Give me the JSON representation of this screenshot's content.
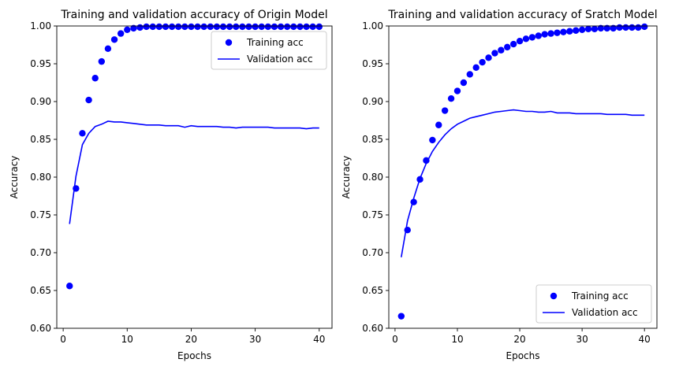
{
  "chart_data": [
    {
      "type": "line",
      "title": "Training and validation accuracy of Origin Model",
      "xlabel": "Epochs",
      "ylabel": "Accuracy",
      "xlim": [
        -1,
        42
      ],
      "ylim": [
        0.6,
        1.0
      ],
      "xticks": [
        0,
        10,
        20,
        30,
        40
      ],
      "yticks": [
        0.6,
        0.65,
        0.7,
        0.75,
        0.8,
        0.85,
        0.9,
        0.95,
        1.0
      ],
      "ytick_labels": [
        "0.60",
        "0.65",
        "0.70",
        "0.75",
        "0.80",
        "0.85",
        "0.90",
        "0.95",
        "1.00"
      ],
      "legend_position": "top-right",
      "series": [
        {
          "name": "Training acc",
          "style": "markers",
          "color": "#0000ff",
          "x": [
            1,
            2,
            3,
            4,
            5,
            6,
            7,
            8,
            9,
            10,
            11,
            12,
            13,
            14,
            15,
            16,
            17,
            18,
            19,
            20,
            21,
            22,
            23,
            24,
            25,
            26,
            27,
            28,
            29,
            30,
            31,
            32,
            33,
            34,
            35,
            36,
            37,
            38,
            39,
            40
          ],
          "values": [
            0.656,
            0.785,
            0.858,
            0.902,
            0.931,
            0.953,
            0.97,
            0.982,
            0.99,
            0.995,
            0.997,
            0.998,
            0.999,
            0.999,
            0.999,
            0.999,
            0.999,
            0.999,
            0.999,
            0.999,
            0.999,
            0.999,
            0.999,
            0.999,
            0.999,
            0.999,
            0.999,
            0.999,
            0.999,
            0.999,
            0.999,
            0.999,
            0.999,
            0.999,
            0.999,
            0.999,
            0.999,
            0.999,
            0.999,
            0.999
          ]
        },
        {
          "name": "Validation acc",
          "style": "line",
          "color": "#0000ff",
          "x": [
            1,
            2,
            3,
            4,
            5,
            6,
            7,
            8,
            9,
            10,
            11,
            12,
            13,
            14,
            15,
            16,
            17,
            18,
            19,
            20,
            21,
            22,
            23,
            24,
            25,
            26,
            27,
            28,
            29,
            30,
            31,
            32,
            33,
            34,
            35,
            36,
            37,
            38,
            39,
            40
          ],
          "values": [
            0.738,
            0.801,
            0.843,
            0.858,
            0.867,
            0.87,
            0.874,
            0.873,
            0.873,
            0.872,
            0.871,
            0.87,
            0.869,
            0.869,
            0.869,
            0.868,
            0.868,
            0.868,
            0.866,
            0.868,
            0.867,
            0.867,
            0.867,
            0.867,
            0.866,
            0.866,
            0.865,
            0.866,
            0.866,
            0.866,
            0.866,
            0.866,
            0.865,
            0.865,
            0.865,
            0.865,
            0.865,
            0.864,
            0.865,
            0.865
          ]
        }
      ]
    },
    {
      "type": "line",
      "title": "Training and validation accuracy of Sratch Model",
      "xlabel": "Epochs",
      "ylabel": "Accuracy",
      "xlim": [
        -1,
        42
      ],
      "ylim": [
        0.6,
        1.0
      ],
      "xticks": [
        0,
        10,
        20,
        30,
        40
      ],
      "yticks": [
        0.6,
        0.65,
        0.7,
        0.75,
        0.8,
        0.85,
        0.9,
        0.95,
        1.0
      ],
      "ytick_labels": [
        "0.60",
        "0.65",
        "0.70",
        "0.75",
        "0.80",
        "0.85",
        "0.90",
        "0.95",
        "1.00"
      ],
      "legend_position": "bottom-right",
      "series": [
        {
          "name": "Training acc",
          "style": "markers",
          "color": "#0000ff",
          "x": [
            1,
            2,
            3,
            4,
            5,
            6,
            7,
            8,
            9,
            10,
            11,
            12,
            13,
            14,
            15,
            16,
            17,
            18,
            19,
            20,
            21,
            22,
            23,
            24,
            25,
            26,
            27,
            28,
            29,
            30,
            31,
            32,
            33,
            34,
            35,
            36,
            37,
            38,
            39,
            40
          ],
          "values": [
            0.616,
            0.73,
            0.767,
            0.797,
            0.822,
            0.849,
            0.869,
            0.888,
            0.904,
            0.914,
            0.925,
            0.936,
            0.945,
            0.952,
            0.958,
            0.964,
            0.968,
            0.972,
            0.976,
            0.98,
            0.983,
            0.985,
            0.987,
            0.989,
            0.99,
            0.991,
            0.992,
            0.993,
            0.994,
            0.995,
            0.996,
            0.996,
            0.997,
            0.997,
            0.997,
            0.998,
            0.998,
            0.998,
            0.998,
            0.999
          ]
        },
        {
          "name": "Validation acc",
          "style": "line",
          "color": "#0000ff",
          "x": [
            1,
            2,
            3,
            4,
            5,
            6,
            7,
            8,
            9,
            10,
            11,
            12,
            13,
            14,
            15,
            16,
            17,
            18,
            19,
            20,
            21,
            22,
            23,
            24,
            25,
            26,
            27,
            28,
            29,
            30,
            31,
            32,
            33,
            34,
            35,
            36,
            37,
            38,
            39,
            40
          ],
          "values": [
            0.694,
            0.742,
            0.772,
            0.798,
            0.818,
            0.834,
            0.846,
            0.856,
            0.864,
            0.87,
            0.874,
            0.878,
            0.88,
            0.882,
            0.884,
            0.886,
            0.887,
            0.888,
            0.889,
            0.888,
            0.887,
            0.887,
            0.886,
            0.886,
            0.887,
            0.885,
            0.885,
            0.885,
            0.884,
            0.884,
            0.884,
            0.884,
            0.884,
            0.883,
            0.883,
            0.883,
            0.883,
            0.882,
            0.882,
            0.882
          ]
        }
      ]
    }
  ]
}
